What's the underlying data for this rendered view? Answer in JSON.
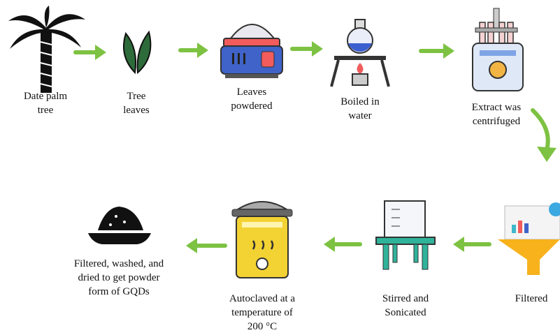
{
  "nodes": [
    {
      "label": [
        "Date palm",
        "tree"
      ]
    },
    {
      "label": [
        "Tree",
        "leaves"
      ]
    },
    {
      "label": [
        "Leaves",
        "powdered"
      ]
    },
    {
      "label": [
        "Boiled in",
        "water"
      ]
    },
    {
      "label": [
        "Extract was",
        "centrifuged"
      ]
    },
    {
      "label": [
        "Filtered"
      ]
    },
    {
      "label": [
        "Stirred and",
        "Sonicated"
      ]
    },
    {
      "label": [
        "Autoclaved at a",
        "temperature of",
        "200 °C"
      ]
    },
    {
      "label": [
        "Filtered, washed, and",
        "dried to get powder",
        "form of GQDs"
      ]
    }
  ]
}
